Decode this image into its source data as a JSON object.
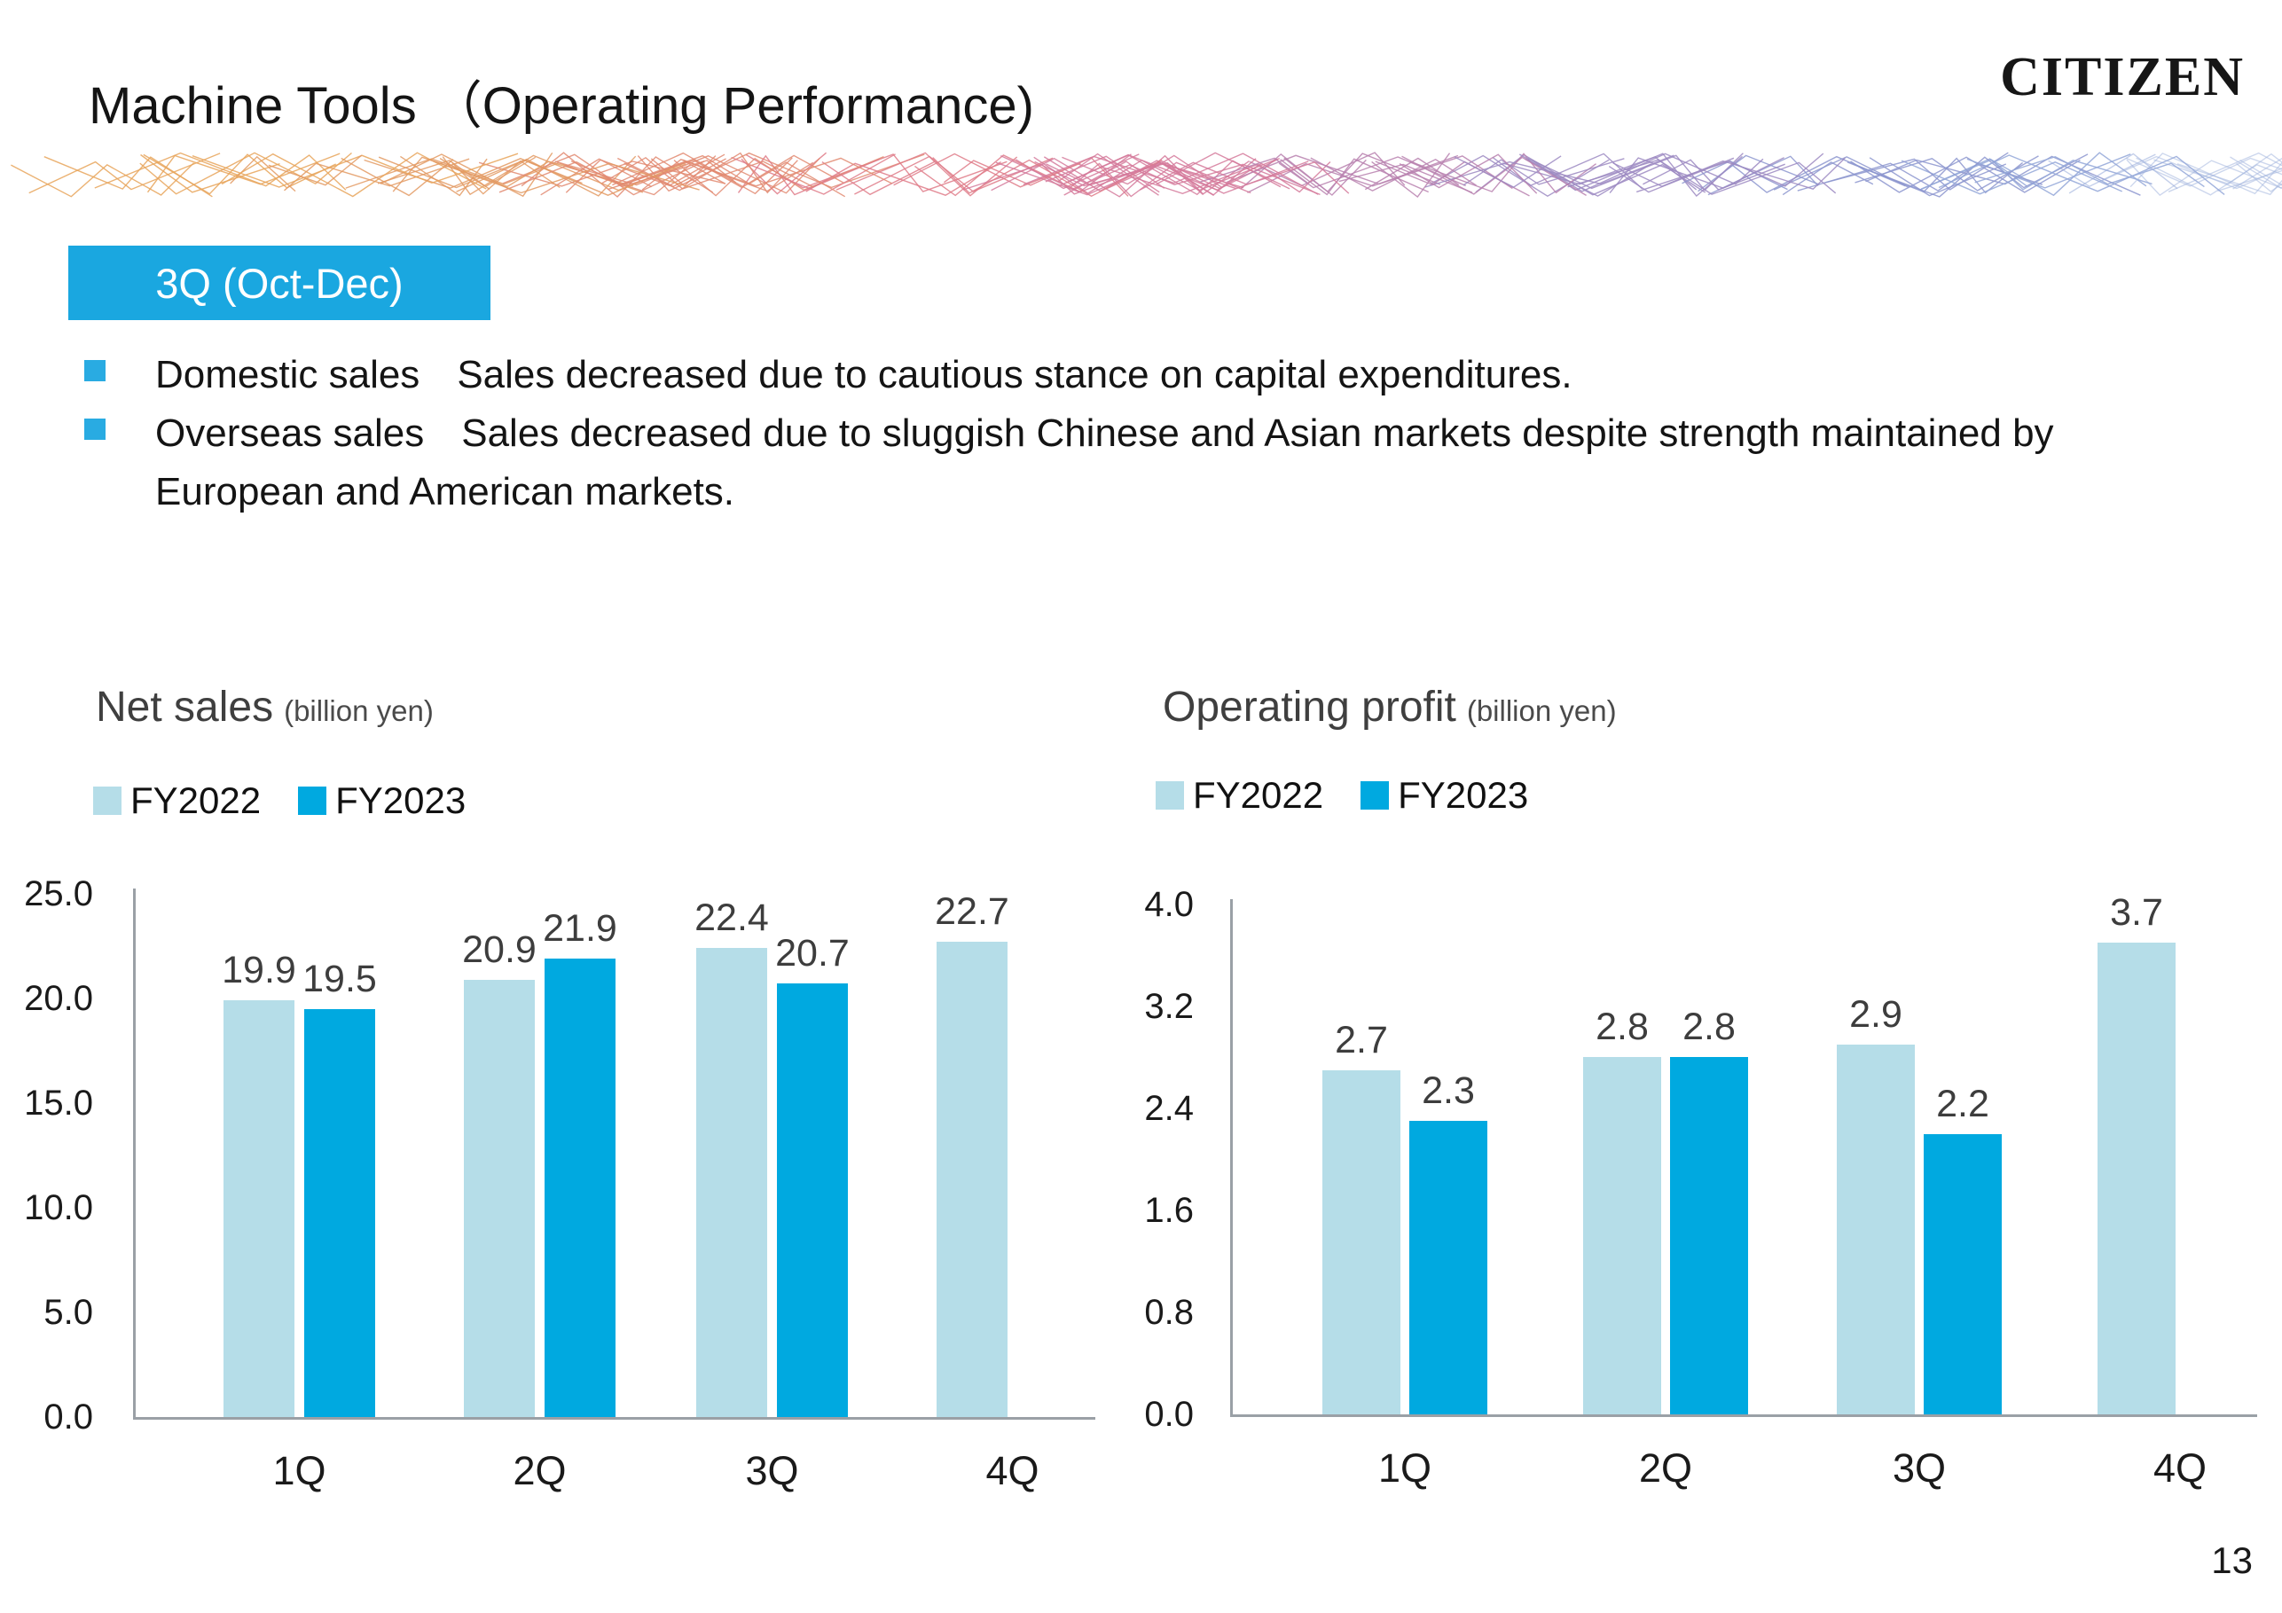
{
  "header": {
    "title": "Machine Tools （Operating Performance)",
    "logo": "CITIZEN"
  },
  "badge": {
    "label": "3Q (Oct-Dec)"
  },
  "bullets": [
    {
      "label": "Domestic sales",
      "text": "Sales decreased due to cautious stance on capital expenditures."
    },
    {
      "label": "Overseas sales",
      "text": "Sales decreased due to sluggish Chinese and Asian markets despite strength maintained by European and American markets."
    }
  ],
  "colors": {
    "fy2022": "#b5dde8",
    "fy2023": "#00a9e0",
    "badge": "#1aa7e0",
    "bullet": "#29abe2"
  },
  "chart_data": [
    {
      "type": "bar",
      "title": "Net sales",
      "unit_label": "(billion yen)",
      "categories": [
        "1Q",
        "2Q",
        "3Q",
        "4Q"
      ],
      "series": [
        {
          "name": "FY2022",
          "values": [
            19.9,
            20.9,
            22.4,
            22.7
          ]
        },
        {
          "name": "FY2023",
          "values": [
            19.5,
            21.9,
            20.7,
            null
          ]
        }
      ],
      "ylim": [
        0,
        25
      ],
      "yticks": [
        0.0,
        5.0,
        10.0,
        15.0,
        20.0,
        25.0
      ],
      "grid": false,
      "legend_position": "top-left"
    },
    {
      "type": "bar",
      "title": "Operating profit",
      "unit_label": "(billion yen)",
      "categories": [
        "1Q",
        "2Q",
        "3Q",
        "4Q"
      ],
      "series": [
        {
          "name": "FY2022",
          "values": [
            2.7,
            2.8,
            2.9,
            3.7
          ]
        },
        {
          "name": "FY2023",
          "values": [
            2.3,
            2.8,
            2.2,
            null
          ]
        }
      ],
      "ylim": [
        0,
        4
      ],
      "yticks": [
        0.0,
        0.8,
        1.6,
        2.4,
        3.2,
        4.0
      ],
      "grid": false,
      "legend_position": "top-left"
    }
  ],
  "footer": {
    "page_number": "13"
  }
}
